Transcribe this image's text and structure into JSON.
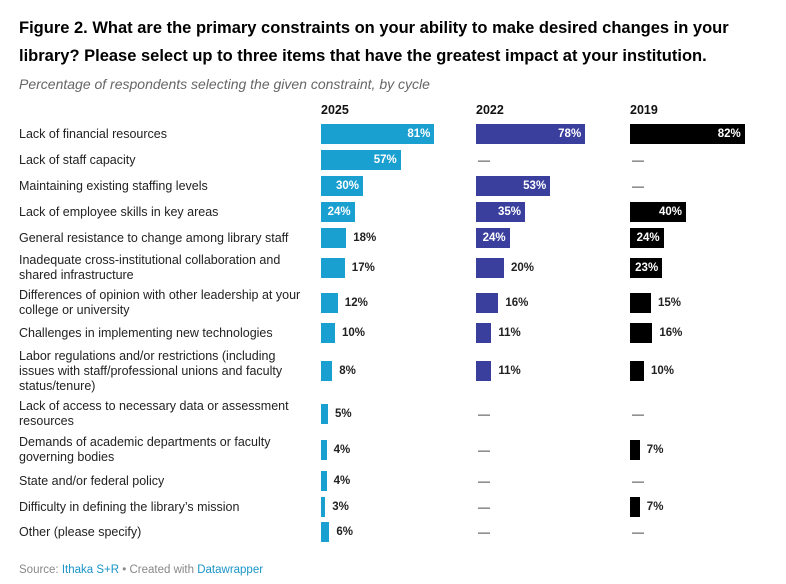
{
  "title": "Figure 2. What are the primary constraints on your ability to make desired changes in your library? Please select up to three items that have the greatest impact at your institution.",
  "subtitle": "Percentage of respondents selecting the given constraint, by cycle",
  "footer": {
    "source_prefix": "Source: ",
    "source": "Ithaka S+R",
    "created_prefix": " • Created with ",
    "tool": "Datawrapper"
  },
  "chart_data": {
    "type": "bar",
    "orientation": "horizontal",
    "title": "Figure 2. What are the primary constraints on your ability to make desired changes in your library? Please select up to three items that have the greatest impact at your institution.",
    "subtitle": "Percentage of respondents selecting the given constraint, by cycle",
    "unit": "%",
    "xlim": [
      0,
      100
    ],
    "missing_marker": "—",
    "categories": [
      "Lack of financial resources",
      "Lack of staff capacity",
      "Maintaining existing staffing levels",
      "Lack of employee skills in key areas",
      "General resistance to change among library staff",
      "Inadequate cross-institutional collaboration and shared infrastructure",
      "Differences of opinion with other leadership at your college or university",
      "Challenges in implementing new technologies",
      "Labor regulations and/or restrictions (including issues with staff/professional unions and faculty status/tenure)",
      "Lack of access to necessary data or assessment resources",
      "Demands of academic departments or faculty governing bodies",
      "State and/or federal policy",
      "Difficulty in defining the library’s mission",
      "Other (please specify)"
    ],
    "series": [
      {
        "name": "2025",
        "color": "#1a9fd1",
        "values": [
          81,
          57,
          30,
          24,
          18,
          17,
          12,
          10,
          8,
          5,
          4,
          4,
          3,
          6
        ]
      },
      {
        "name": "2022",
        "color": "#3a3f9e",
        "values": [
          78,
          null,
          53,
          35,
          24,
          20,
          16,
          11,
          11,
          null,
          null,
          null,
          null,
          null
        ]
      },
      {
        "name": "2019",
        "color": "#000000",
        "values": [
          82,
          null,
          null,
          40,
          24,
          23,
          15,
          16,
          10,
          null,
          7,
          null,
          7,
          null
        ]
      }
    ]
  }
}
